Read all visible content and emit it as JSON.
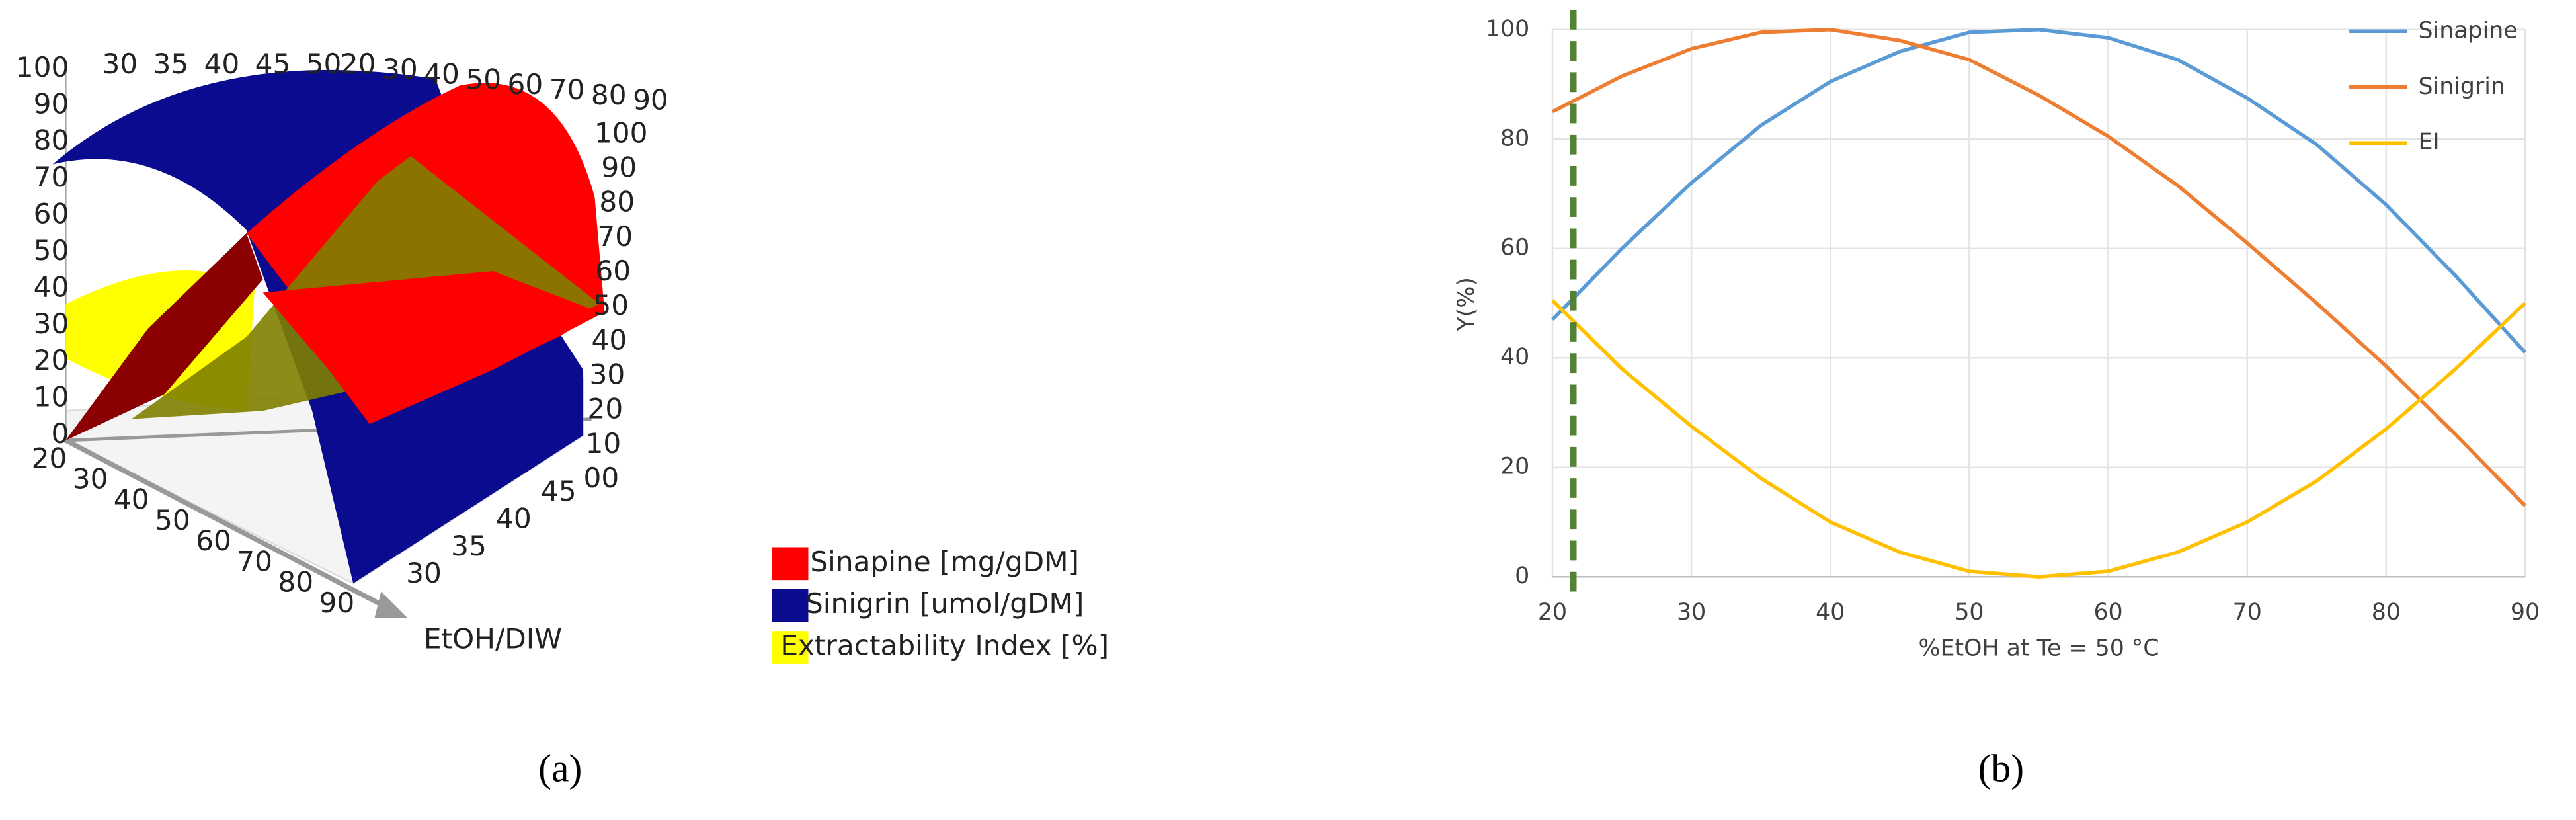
{
  "chart_data": [
    {
      "type": "surface3d",
      "caption": "(a)",
      "axis_label": "EtOH/DIW",
      "series": [
        {
          "name": "Sinapine [mg/gDM]",
          "color": "#ff0000"
        },
        {
          "name": "Sinigrin [umol/gDM]",
          "color": "#0b0b8f"
        },
        {
          "name": "Extractability Index [%]",
          "color": "#ffff00"
        }
      ],
      "ticks_left": [
        100,
        90,
        80,
        70,
        60,
        50,
        40,
        30,
        20,
        10,
        0
      ],
      "ticks_top_left": [
        30,
        35,
        40,
        45,
        50
      ],
      "ticks_top_right": [
        20,
        30,
        40,
        50,
        60,
        70,
        80,
        90
      ],
      "ticks_right": [
        100,
        90,
        80,
        70,
        60,
        50,
        40,
        30,
        20,
        10,
        {
          "value": 0,
          "label": "00"
        }
      ],
      "ticks_front_left": [
        20,
        30,
        40,
        50,
        60,
        70,
        80,
        90
      ],
      "ticks_front_right": [
        30,
        35,
        40,
        45
      ]
    },
    {
      "type": "line",
      "caption": "(b)",
      "xlabel": "%EtOH at Te = 50 °C",
      "ylabel": "Y(%)",
      "x": [
        20,
        25,
        30,
        35,
        40,
        45,
        50,
        55,
        60,
        65,
        70,
        75,
        80,
        85,
        90
      ],
      "series": [
        {
          "name": "Sinapine",
          "color": "#5b9bd5",
          "values": [
            47,
            60,
            72,
            82.5,
            90.5,
            96,
            99.5,
            100,
            98.5,
            94.5,
            87.5,
            79,
            68,
            55,
            41
          ]
        },
        {
          "name": "Sinigrin",
          "color": "#ed7d31",
          "values": [
            85,
            91.5,
            96.5,
            99.5,
            100,
            98,
            94.5,
            88,
            80.5,
            71.5,
            61,
            50,
            38.5,
            26,
            13
          ]
        },
        {
          "name": "EI",
          "color": "#ffc000",
          "values": [
            50.5,
            38,
            27.5,
            18,
            10,
            4.5,
            1,
            0,
            1,
            4.5,
            10,
            17.5,
            27,
            38,
            50
          ]
        }
      ],
      "xlim": [
        20,
        90
      ],
      "xticks": [
        20,
        30,
        40,
        50,
        60,
        70,
        80,
        90
      ],
      "ylim": [
        0,
        100
      ],
      "yticks": [
        0,
        20,
        40,
        60,
        80,
        100
      ],
      "grid": true,
      "legend": "upper-right",
      "vline": {
        "x": 21.5,
        "color": "#548235"
      }
    }
  ]
}
